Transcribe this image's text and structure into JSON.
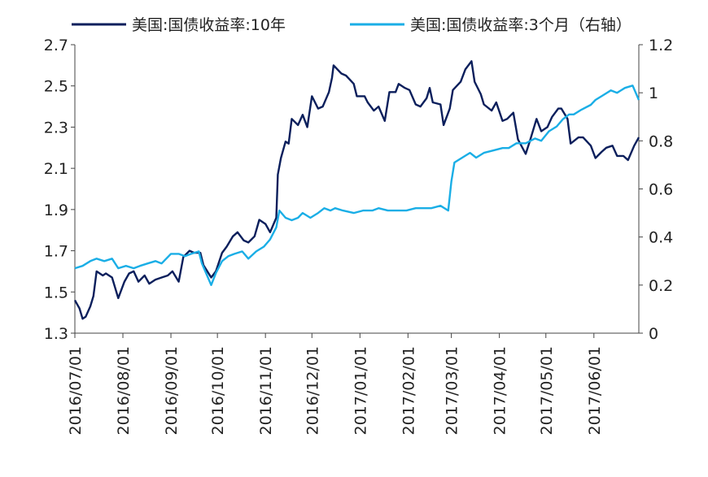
{
  "chart_data": {
    "type": "line",
    "legend": {
      "placement": "top",
      "items": [
        {
          "label": "美国:国债收益率:10年",
          "color": "#0b1f5c"
        },
        {
          "label": "美国:国债收益率:3个月（右轴）",
          "color": "#1aaee6"
        }
      ]
    },
    "left_axis": {
      "min": 1.3,
      "max": 2.7,
      "ticks": [
        "1.3",
        "1.5",
        "1.7",
        "1.9",
        "2.1",
        "2.3",
        "2.5",
        "2.7"
      ]
    },
    "right_axis": {
      "min": 0,
      "max": 1.2,
      "ticks": [
        "0",
        "0.2",
        "0.4",
        "0.6",
        "0.8",
        "1",
        "1.2"
      ]
    },
    "x_ticks": [
      "2016/07/01",
      "2016/08/01",
      "2016/09/01",
      "2016/10/01",
      "2016/11/01",
      "2016/12/01",
      "2017/01/01",
      "2017/02/01",
      "2017/03/01",
      "2017/04/01",
      "2017/05/01",
      "2017/06/01"
    ],
    "x_range": [
      "2016-07-01",
      "2017-06-30"
    ],
    "grid": false,
    "series": [
      {
        "name": "美国:国债收益率:10年",
        "axis": "left",
        "color": "#0b1f5c",
        "points": [
          [
            "2016-07-01",
            1.46
          ],
          [
            "2016-07-04",
            1.42
          ],
          [
            "2016-07-06",
            1.37
          ],
          [
            "2016-07-08",
            1.38
          ],
          [
            "2016-07-11",
            1.43
          ],
          [
            "2016-07-13",
            1.48
          ],
          [
            "2016-07-15",
            1.6
          ],
          [
            "2016-07-19",
            1.58
          ],
          [
            "2016-07-21",
            1.59
          ],
          [
            "2016-07-25",
            1.57
          ],
          [
            "2016-07-27",
            1.52
          ],
          [
            "2016-07-29",
            1.47
          ],
          [
            "2016-08-02",
            1.55
          ],
          [
            "2016-08-05",
            1.59
          ],
          [
            "2016-08-08",
            1.6
          ],
          [
            "2016-08-11",
            1.55
          ],
          [
            "2016-08-15",
            1.58
          ],
          [
            "2016-08-18",
            1.54
          ],
          [
            "2016-08-22",
            1.56
          ],
          [
            "2016-08-26",
            1.57
          ],
          [
            "2016-08-30",
            1.58
          ],
          [
            "2016-09-02",
            1.6
          ],
          [
            "2016-09-06",
            1.55
          ],
          [
            "2016-09-09",
            1.67
          ],
          [
            "2016-09-13",
            1.7
          ],
          [
            "2016-09-16",
            1.69
          ],
          [
            "2016-09-20",
            1.69
          ],
          [
            "2016-09-22",
            1.63
          ],
          [
            "2016-09-27",
            1.57
          ],
          [
            "2016-09-30",
            1.6
          ],
          [
            "2016-10-04",
            1.69
          ],
          [
            "2016-10-07",
            1.72
          ],
          [
            "2016-10-11",
            1.77
          ],
          [
            "2016-10-14",
            1.79
          ],
          [
            "2016-10-18",
            1.75
          ],
          [
            "2016-10-21",
            1.74
          ],
          [
            "2016-10-25",
            1.77
          ],
          [
            "2016-10-28",
            1.85
          ],
          [
            "2016-11-01",
            1.83
          ],
          [
            "2016-11-04",
            1.79
          ],
          [
            "2016-11-08",
            1.86
          ],
          [
            "2016-11-09",
            2.07
          ],
          [
            "2016-11-11",
            2.15
          ],
          [
            "2016-11-14",
            2.23
          ],
          [
            "2016-11-16",
            2.22
          ],
          [
            "2016-11-18",
            2.34
          ],
          [
            "2016-11-22",
            2.31
          ],
          [
            "2016-11-25",
            2.36
          ],
          [
            "2016-11-28",
            2.3
          ],
          [
            "2016-12-01",
            2.45
          ],
          [
            "2016-12-05",
            2.39
          ],
          [
            "2016-12-08",
            2.4
          ],
          [
            "2016-12-12",
            2.47
          ],
          [
            "2016-12-14",
            2.54
          ],
          [
            "2016-12-15",
            2.6
          ],
          [
            "2016-12-20",
            2.56
          ],
          [
            "2016-12-23",
            2.55
          ],
          [
            "2016-12-28",
            2.51
          ],
          [
            "2016-12-30",
            2.45
          ],
          [
            "2017-01-04",
            2.45
          ],
          [
            "2017-01-06",
            2.42
          ],
          [
            "2017-01-10",
            2.38
          ],
          [
            "2017-01-13",
            2.4
          ],
          [
            "2017-01-17",
            2.33
          ],
          [
            "2017-01-20",
            2.47
          ],
          [
            "2017-01-24",
            2.47
          ],
          [
            "2017-01-26",
            2.51
          ],
          [
            "2017-01-30",
            2.49
          ],
          [
            "2017-02-02",
            2.48
          ],
          [
            "2017-02-06",
            2.41
          ],
          [
            "2017-02-09",
            2.4
          ],
          [
            "2017-02-13",
            2.44
          ],
          [
            "2017-02-15",
            2.49
          ],
          [
            "2017-02-17",
            2.42
          ],
          [
            "2017-02-22",
            2.41
          ],
          [
            "2017-02-24",
            2.31
          ],
          [
            "2017-02-28",
            2.39
          ],
          [
            "2017-03-02",
            2.48
          ],
          [
            "2017-03-07",
            2.52
          ],
          [
            "2017-03-10",
            2.58
          ],
          [
            "2017-03-14",
            2.62
          ],
          [
            "2017-03-16",
            2.52
          ],
          [
            "2017-03-20",
            2.46
          ],
          [
            "2017-03-22",
            2.41
          ],
          [
            "2017-03-27",
            2.38
          ],
          [
            "2017-03-30",
            2.42
          ],
          [
            "2017-04-03",
            2.33
          ],
          [
            "2017-04-06",
            2.34
          ],
          [
            "2017-04-10",
            2.37
          ],
          [
            "2017-04-13",
            2.24
          ],
          [
            "2017-04-18",
            2.17
          ],
          [
            "2017-04-21",
            2.24
          ],
          [
            "2017-04-25",
            2.34
          ],
          [
            "2017-04-28",
            2.28
          ],
          [
            "2017-05-02",
            2.3
          ],
          [
            "2017-05-05",
            2.35
          ],
          [
            "2017-05-09",
            2.39
          ],
          [
            "2017-05-11",
            2.39
          ],
          [
            "2017-05-15",
            2.34
          ],
          [
            "2017-05-17",
            2.22
          ],
          [
            "2017-05-22",
            2.25
          ],
          [
            "2017-05-25",
            2.25
          ],
          [
            "2017-05-30",
            2.21
          ],
          [
            "2017-06-02",
            2.15
          ],
          [
            "2017-06-06",
            2.18
          ],
          [
            "2017-06-09",
            2.2
          ],
          [
            "2017-06-13",
            2.21
          ],
          [
            "2017-06-16",
            2.16
          ],
          [
            "2017-06-20",
            2.16
          ],
          [
            "2017-06-23",
            2.14
          ],
          [
            "2017-06-27",
            2.21
          ],
          [
            "2017-06-30",
            2.25
          ]
        ]
      },
      {
        "name": "美国:国债收益率:3个月（右轴）",
        "axis": "right",
        "color": "#1aaee6",
        "points": [
          [
            "2016-07-01",
            0.27
          ],
          [
            "2016-07-06",
            0.28
          ],
          [
            "2016-07-11",
            0.3
          ],
          [
            "2016-07-15",
            0.31
          ],
          [
            "2016-07-20",
            0.3
          ],
          [
            "2016-07-25",
            0.31
          ],
          [
            "2016-07-29",
            0.27
          ],
          [
            "2016-08-03",
            0.28
          ],
          [
            "2016-08-08",
            0.27
          ],
          [
            "2016-08-12",
            0.28
          ],
          [
            "2016-08-17",
            0.29
          ],
          [
            "2016-08-22",
            0.3
          ],
          [
            "2016-08-26",
            0.29
          ],
          [
            "2016-09-01",
            0.33
          ],
          [
            "2016-09-06",
            0.33
          ],
          [
            "2016-09-10",
            0.32
          ],
          [
            "2016-09-14",
            0.33
          ],
          [
            "2016-09-19",
            0.34
          ],
          [
            "2016-09-21",
            0.29
          ],
          [
            "2016-09-27",
            0.2
          ],
          [
            "2016-09-30",
            0.25
          ],
          [
            "2016-10-04",
            0.3
          ],
          [
            "2016-10-08",
            0.32
          ],
          [
            "2016-10-12",
            0.33
          ],
          [
            "2016-10-17",
            0.34
          ],
          [
            "2016-10-21",
            0.31
          ],
          [
            "2016-10-26",
            0.34
          ],
          [
            "2016-10-31",
            0.36
          ],
          [
            "2016-11-04",
            0.39
          ],
          [
            "2016-11-08",
            0.44
          ],
          [
            "2016-11-10",
            0.51
          ],
          [
            "2016-11-14",
            0.48
          ],
          [
            "2016-11-18",
            0.47
          ],
          [
            "2016-11-22",
            0.48
          ],
          [
            "2016-11-25",
            0.5
          ],
          [
            "2016-11-30",
            0.48
          ],
          [
            "2016-12-05",
            0.5
          ],
          [
            "2016-12-09",
            0.52
          ],
          [
            "2016-12-13",
            0.51
          ],
          [
            "2016-12-16",
            0.52
          ],
          [
            "2016-12-21",
            0.51
          ],
          [
            "2016-12-28",
            0.5
          ],
          [
            "2017-01-03",
            0.51
          ],
          [
            "2017-01-09",
            0.51
          ],
          [
            "2017-01-13",
            0.52
          ],
          [
            "2017-01-19",
            0.51
          ],
          [
            "2017-01-25",
            0.51
          ],
          [
            "2017-01-31",
            0.51
          ],
          [
            "2017-02-06",
            0.52
          ],
          [
            "2017-02-10",
            0.52
          ],
          [
            "2017-02-16",
            0.52
          ],
          [
            "2017-02-22",
            0.53
          ],
          [
            "2017-02-27",
            0.51
          ],
          [
            "2017-03-01",
            0.63
          ],
          [
            "2017-03-03",
            0.71
          ],
          [
            "2017-03-08",
            0.73
          ],
          [
            "2017-03-13",
            0.75
          ],
          [
            "2017-03-17",
            0.73
          ],
          [
            "2017-03-22",
            0.75
          ],
          [
            "2017-03-28",
            0.76
          ],
          [
            "2017-04-03",
            0.77
          ],
          [
            "2017-04-07",
            0.77
          ],
          [
            "2017-04-12",
            0.79
          ],
          [
            "2017-04-18",
            0.79
          ],
          [
            "2017-04-24",
            0.81
          ],
          [
            "2017-04-28",
            0.8
          ],
          [
            "2017-05-03",
            0.84
          ],
          [
            "2017-05-08",
            0.86
          ],
          [
            "2017-05-12",
            0.89
          ],
          [
            "2017-05-16",
            0.91
          ],
          [
            "2017-05-19",
            0.91
          ],
          [
            "2017-05-24",
            0.93
          ],
          [
            "2017-05-30",
            0.95
          ],
          [
            "2017-06-02",
            0.97
          ],
          [
            "2017-06-07",
            0.99
          ],
          [
            "2017-06-12",
            1.01
          ],
          [
            "2017-06-16",
            1.0
          ],
          [
            "2017-06-21",
            1.02
          ],
          [
            "2017-06-26",
            1.03
          ],
          [
            "2017-06-30",
            0.97
          ]
        ]
      }
    ]
  }
}
